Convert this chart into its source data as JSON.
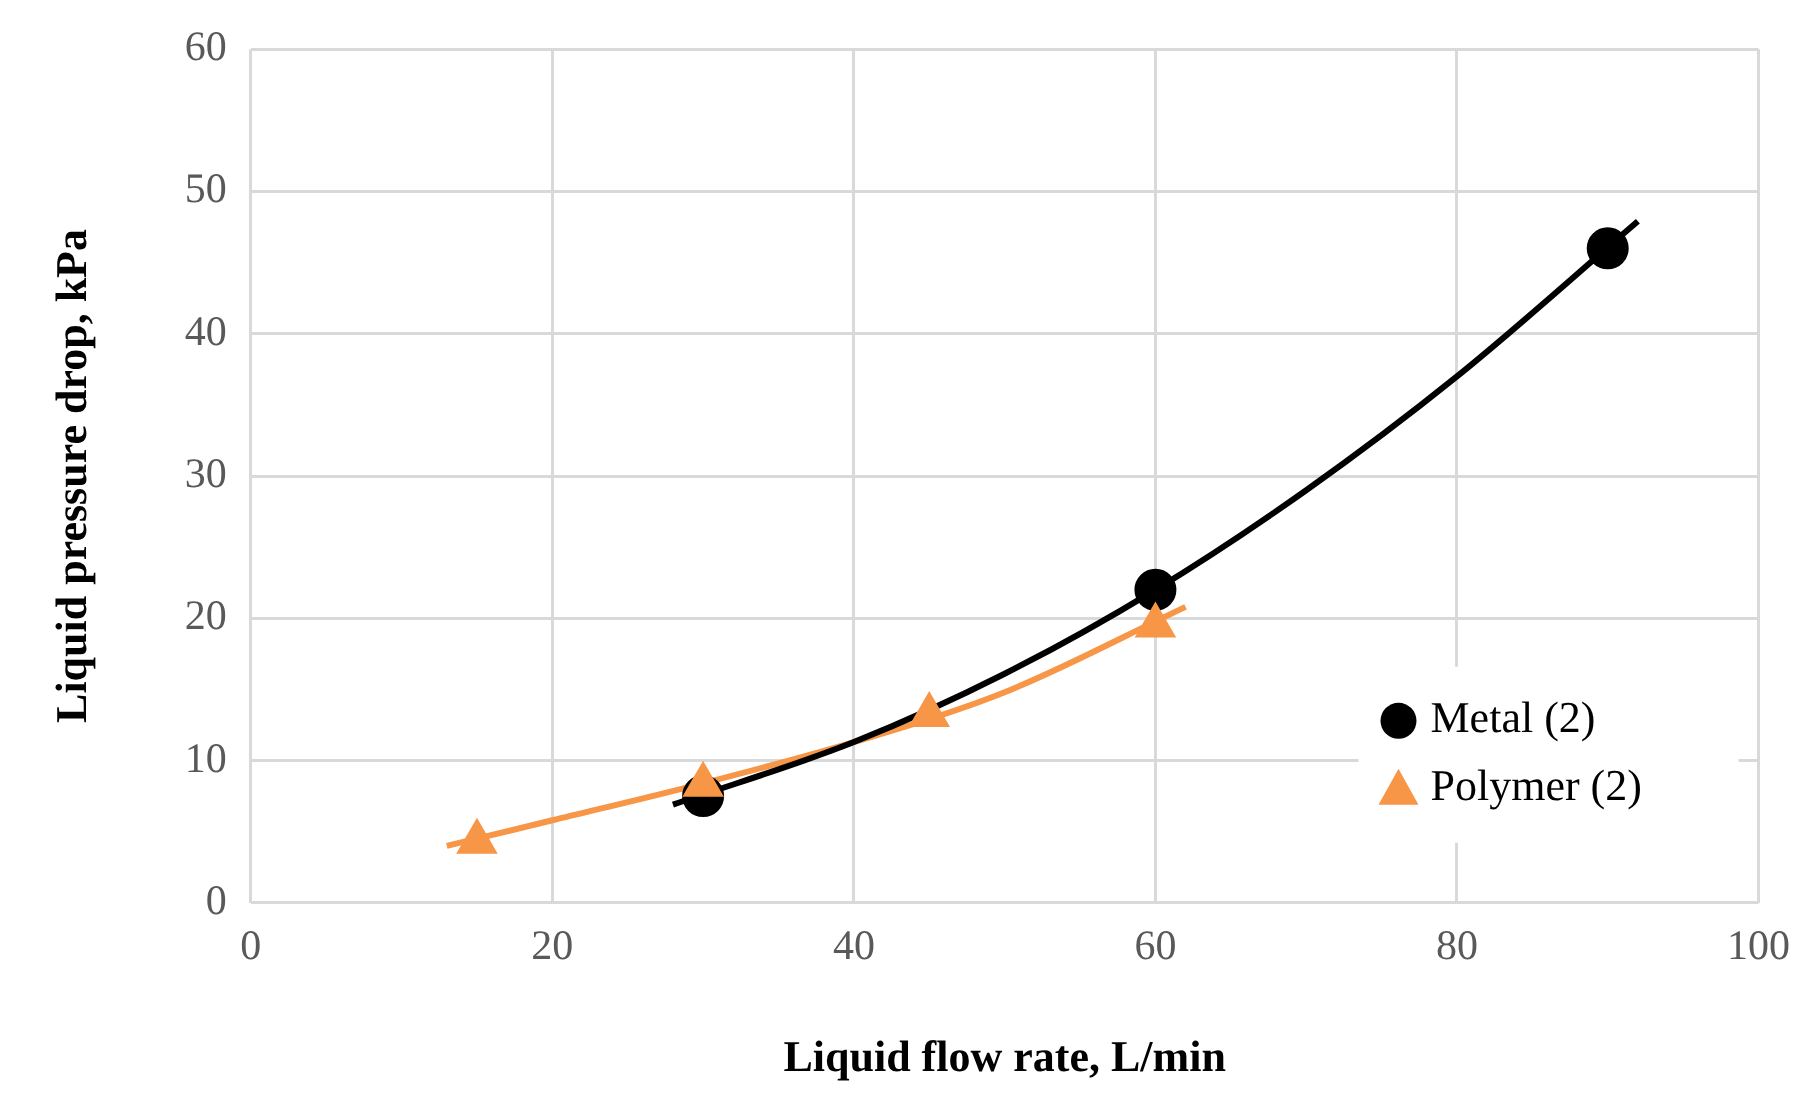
{
  "chart_data": {
    "type": "scatter",
    "xlabel": "Liquid flow rate, L/min",
    "ylabel": "Liquid pressure drop, kPa",
    "xlim": [
      0,
      100
    ],
    "xticks": [
      0,
      20,
      40,
      60,
      80,
      100
    ],
    "ylim": [
      0,
      60
    ],
    "yticks": [
      0,
      10,
      20,
      30,
      40,
      50,
      60
    ],
    "grid": true,
    "legend": "bottom right",
    "series": [
      {
        "type": "line",
        "color": "#000000",
        "marker": "none",
        "x": [
          28,
          40,
          50,
          60,
          70,
          80,
          92
        ],
        "values": [
          6.9,
          11.3,
          16.1,
          22,
          29,
          37,
          47.9
        ]
      },
      {
        "type": "line",
        "color": "#f79646",
        "marker": "none",
        "x": [
          13,
          20,
          30,
          40,
          50,
          62
        ],
        "values": [
          4,
          5.8,
          8.4,
          11.3,
          14.8,
          20.8
        ]
      },
      {
        "name": "Metal (2)",
        "type": "scatter",
        "color": "#000000",
        "marker": "circle",
        "x": [
          30,
          60,
          90
        ],
        "values": [
          7.5,
          22,
          46
        ]
      },
      {
        "name": "Polymer (2)",
        "type": "scatter",
        "color": "#f79646",
        "marker": "triangle",
        "x": [
          15,
          30,
          45,
          60
        ],
        "values": [
          4.3,
          8.3,
          13.2,
          19.5
        ]
      }
    ]
  }
}
